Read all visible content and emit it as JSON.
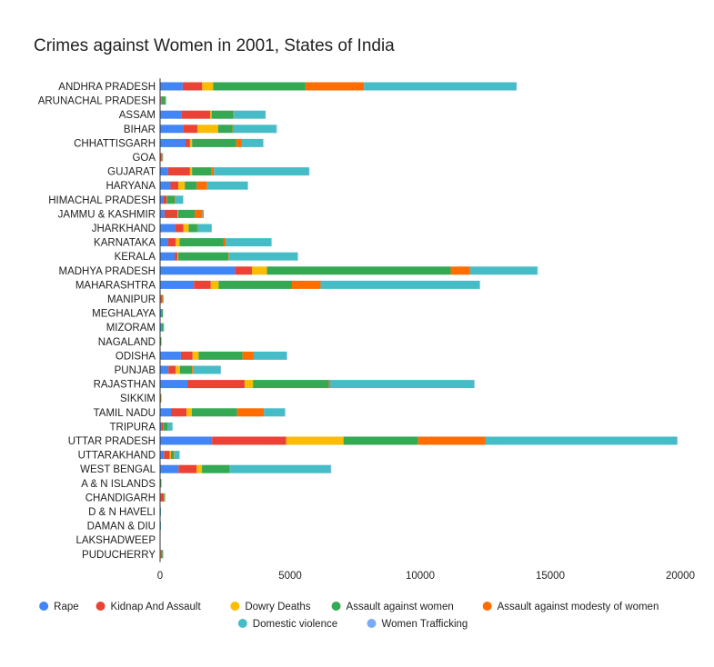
{
  "chart_data": {
    "type": "bar",
    "orientation": "horizontal",
    "stacked": true,
    "title": "Crimes against Women in 2001, States of India",
    "xlabel": "",
    "ylabel": "",
    "xlim": [
      0,
      20000
    ],
    "x_ticks": [
      0,
      5000,
      10000,
      15000,
      20000
    ],
    "grid": false,
    "legend_position": "bottom",
    "categories": [
      "ANDHRA PRADESH",
      "ARUNACHAL PRADESH",
      "ASSAM",
      "BIHAR",
      "CHHATTISGARH",
      "GOA",
      "GUJARAT",
      "HARYANA",
      "HIMACHAL PRADESH",
      "JAMMU & KASHMIR",
      "JHARKHAND",
      "KARNATAKA",
      "KERALA",
      "MADHYA PRADESH",
      "MAHARASHTRA",
      "MANIPUR",
      "MEGHALAYA",
      "MIZORAM",
      "NAGALAND",
      "ODISHA",
      "PUNJAB",
      "RAJASTHAN",
      "SIKKIM",
      "TAMIL NADU",
      "TRIPURA",
      "UTTAR PRADESH",
      "UTTARAKHAND",
      "WEST BENGAL",
      "A & N ISLANDS",
      "CHANDIGARH",
      "D & N HAVELI",
      "DAMAN & DIU",
      "LAKSHADWEEP",
      "PUDUCHERRY"
    ],
    "series": [
      {
        "name": "Rape",
        "color": "#4285F4",
        "values": [
          870,
          25,
          810,
          880,
          980,
          15,
          310,
          400,
          120,
          170,
          580,
          300,
          560,
          2880,
          1300,
          20,
          40,
          40,
          15,
          800,
          320,
          1050,
          10,
          420,
          70,
          2000,
          150,
          710,
          10,
          20,
          5,
          2,
          0,
          10
        ]
      },
      {
        "name": "Kidnap And Assault",
        "color": "#EA4335",
        "values": [
          750,
          20,
          1120,
          560,
          170,
          20,
          840,
          300,
          130,
          500,
          320,
          300,
          110,
          650,
          650,
          60,
          30,
          10,
          5,
          450,
          280,
          2200,
          5,
          600,
          40,
          2850,
          220,
          700,
          5,
          120,
          3,
          3,
          0,
          20
        ]
      },
      {
        "name": "Dowry Deaths",
        "color": "#FBBC04",
        "values": [
          420,
          5,
          50,
          790,
          80,
          5,
          80,
          250,
          10,
          20,
          200,
          150,
          30,
          580,
          300,
          0,
          0,
          0,
          0,
          230,
          160,
          320,
          0,
          200,
          10,
          2200,
          50,
          200,
          0,
          20,
          0,
          0,
          0,
          5
        ]
      },
      {
        "name": "Assault against women",
        "color": "#34A853",
        "values": [
          3550,
          140,
          840,
          560,
          1700,
          40,
          730,
          460,
          300,
          640,
          330,
          1680,
          1930,
          7060,
          2820,
          10,
          40,
          80,
          20,
          1690,
          470,
          2920,
          10,
          1740,
          160,
          2870,
          110,
          1060,
          20,
          20,
          5,
          5,
          0,
          60
        ]
      },
      {
        "name": "Assault against modesty of women",
        "color": "#FF6D01",
        "values": [
          2250,
          20,
          20,
          40,
          200,
          15,
          110,
          400,
          30,
          300,
          20,
          90,
          20,
          750,
          1100,
          40,
          0,
          0,
          0,
          430,
          40,
          50,
          10,
          1030,
          20,
          2580,
          20,
          10,
          0,
          0,
          0,
          0,
          0,
          5
        ]
      },
      {
        "name": "Domestic violence",
        "color": "#46BDC6",
        "values": [
          5850,
          10,
          1200,
          1640,
          820,
          5,
          3650,
          1550,
          300,
          50,
          520,
          1750,
          2630,
          2580,
          6110,
          0,
          0,
          20,
          5,
          1260,
          1050,
          5530,
          5,
          800,
          180,
          7370,
          200,
          3870,
          10,
          10,
          5,
          5,
          0,
          10
        ]
      },
      {
        "name": "Women Trafficking",
        "color": "#7BAAF7",
        "values": [
          10,
          0,
          5,
          15,
          5,
          0,
          10,
          10,
          0,
          0,
          5,
          20,
          10,
          10,
          20,
          0,
          0,
          0,
          0,
          20,
          5,
          15,
          0,
          15,
          0,
          20,
          0,
          30,
          0,
          0,
          0,
          0,
          0,
          0
        ]
      }
    ]
  }
}
